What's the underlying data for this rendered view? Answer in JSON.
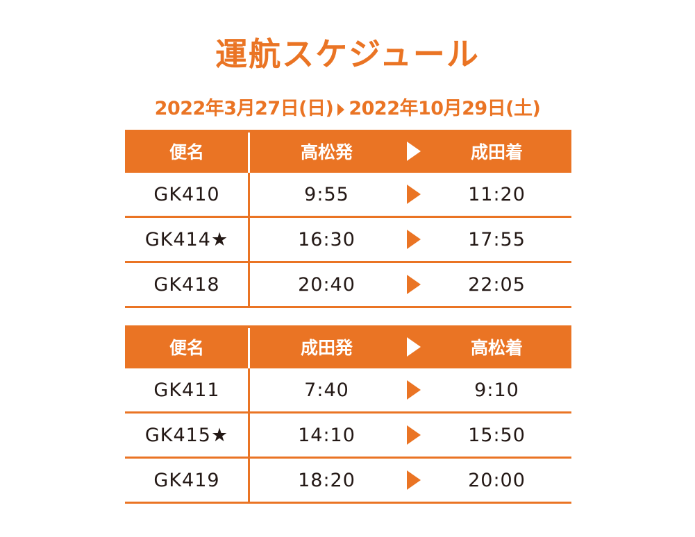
{
  "title": "運航スケジュール",
  "period": {
    "start": "2022年3月27日(日)",
    "end": "2022年10月29日(土)"
  },
  "colors": {
    "accent": "#ea7424",
    "text": "#231815"
  },
  "tables": [
    {
      "headers": {
        "flight": "便名",
        "depart": "高松発",
        "arrive": "成田着"
      },
      "rows": [
        {
          "flight": "GK410",
          "depart": "9:55",
          "arrive": "11:20"
        },
        {
          "flight": "GK414★",
          "depart": "16:30",
          "arrive": "17:55"
        },
        {
          "flight": "GK418",
          "depart": "20:40",
          "arrive": "22:05"
        }
      ]
    },
    {
      "headers": {
        "flight": "便名",
        "depart": "成田発",
        "arrive": "高松着"
      },
      "rows": [
        {
          "flight": "GK411",
          "depart": "7:40",
          "arrive": "9:10"
        },
        {
          "flight": "GK415★",
          "depart": "14:10",
          "arrive": "15:50"
        },
        {
          "flight": "GK419",
          "depart": "18:20",
          "arrive": "20:00"
        }
      ]
    }
  ]
}
